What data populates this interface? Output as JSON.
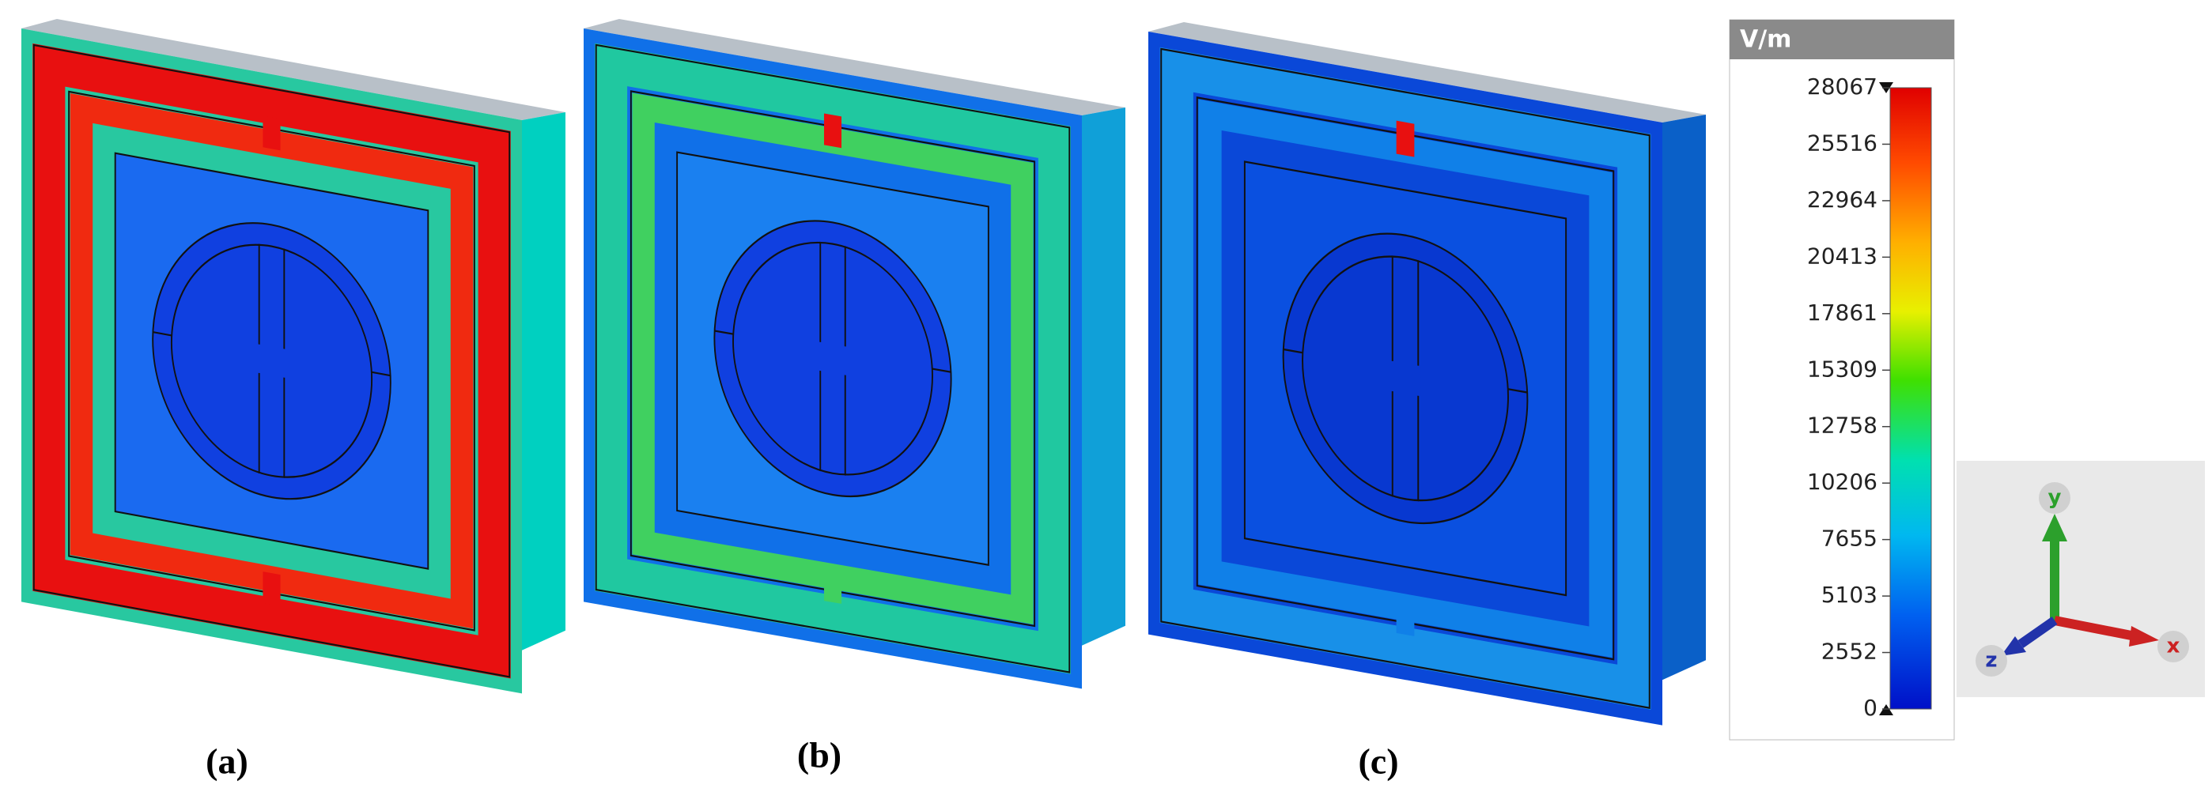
{
  "panels": [
    {
      "label": "(a)"
    },
    {
      "label": "(b)"
    },
    {
      "label": "(c)"
    }
  ],
  "colorbar": {
    "unit": "V/m",
    "ticks": [
      28067,
      25516,
      22964,
      20413,
      17861,
      15309,
      12758,
      10206,
      7655,
      5103,
      2552,
      0
    ]
  },
  "axes": {
    "y": "y",
    "x": "x",
    "z": "z"
  }
}
